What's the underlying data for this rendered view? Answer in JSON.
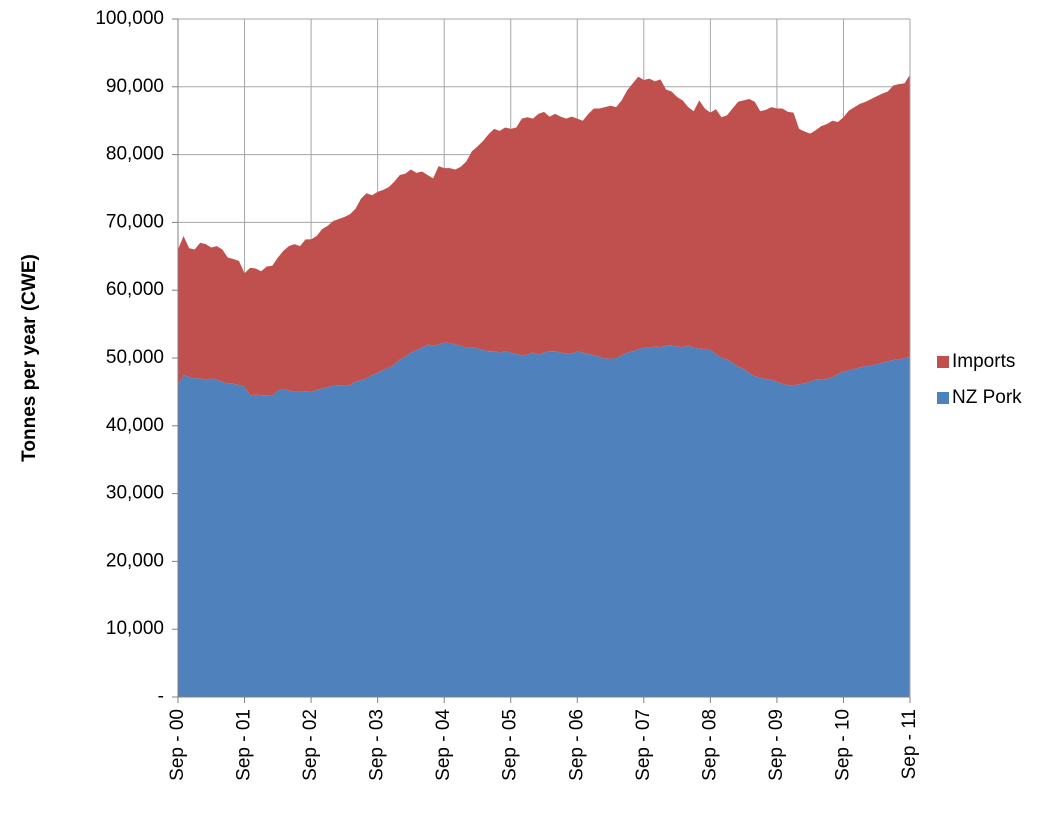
{
  "chart_data": {
    "type": "area",
    "stacked": true,
    "y_label": "Tonnes per year (CWE)",
    "categories": [
      "Sep - 00",
      null,
      null,
      null,
      null,
      null,
      null,
      null,
      null,
      null,
      null,
      null,
      "Sep - 01",
      null,
      null,
      null,
      null,
      null,
      null,
      null,
      null,
      null,
      null,
      null,
      "Sep - 02",
      null,
      null,
      null,
      null,
      null,
      null,
      null,
      null,
      null,
      null,
      null,
      "Sep - 03",
      null,
      null,
      null,
      null,
      null,
      null,
      null,
      null,
      null,
      null,
      null,
      "Sep - 04",
      null,
      null,
      null,
      null,
      null,
      null,
      null,
      null,
      null,
      null,
      null,
      "Sep - 05",
      null,
      null,
      null,
      null,
      null,
      null,
      null,
      null,
      null,
      null,
      null,
      "Sep - 06",
      null,
      null,
      null,
      null,
      null,
      null,
      null,
      null,
      null,
      null,
      null,
      "Sep - 07",
      null,
      null,
      null,
      null,
      null,
      null,
      null,
      null,
      null,
      null,
      null,
      "Sep - 08",
      null,
      null,
      null,
      null,
      null,
      null,
      null,
      null,
      null,
      null,
      null,
      "Sep - 09",
      null,
      null,
      null,
      null,
      null,
      null,
      null,
      null,
      null,
      null,
      null,
      "Sep - 10",
      null,
      null,
      null,
      null,
      null,
      null,
      null,
      null,
      null,
      null,
      null,
      "Sep - 11"
    ],
    "series": [
      {
        "name": "NZ Pork",
        "color": "#4f81bd",
        "values": [
          46000,
          47500,
          47200,
          47000,
          47000,
          46800,
          47000,
          46800,
          46500,
          46200,
          46200,
          46000,
          45800,
          44500,
          44600,
          44500,
          44500,
          44400,
          45200,
          45400,
          45200,
          45000,
          45000,
          45100,
          45000,
          45300,
          45500,
          45700,
          45900,
          46000,
          45900,
          46000,
          46500,
          46700,
          47000,
          47500,
          47800,
          48200,
          48600,
          49000,
          49800,
          50200,
          50800,
          51200,
          51500,
          52000,
          51800,
          52000,
          52300,
          52200,
          52000,
          51800,
          51500,
          51600,
          51400,
          51200,
          51000,
          51000,
          50800,
          51000,
          50800,
          50600,
          50400,
          50500,
          50800,
          50500,
          50800,
          51000,
          51000,
          50800,
          50700,
          50600,
          51000,
          50800,
          50600,
          50400,
          50200,
          49900,
          49900,
          50000,
          50400,
          50800,
          51000,
          51300,
          51500,
          51500,
          51700,
          51600,
          51800,
          51800,
          51700,
          51600,
          51800,
          51500,
          51400,
          51300,
          51200,
          50600,
          50000,
          49800,
          49300,
          48700,
          48400,
          47800,
          47300,
          47100,
          46900,
          46800,
          46500,
          46200,
          46000,
          46000,
          46100,
          46300,
          46500,
          46800,
          46800,
          46900,
          47200,
          47600,
          48000,
          48200,
          48400,
          48600,
          48800,
          48900,
          49100,
          49300,
          49500,
          49700,
          49800,
          50000,
          50200
        ]
      },
      {
        "name": "Imports",
        "color": "#c0504d",
        "values": [
          20000,
          20500,
          19000,
          19000,
          20000,
          20000,
          19300,
          19700,
          19500,
          18600,
          18400,
          18300,
          16700,
          18800,
          18600,
          18300,
          19000,
          19200,
          19600,
          20400,
          21300,
          21800,
          21500,
          22400,
          22500,
          22700,
          23500,
          23800,
          24300,
          24500,
          24900,
          25200,
          25500,
          26800,
          27300,
          26500,
          26700,
          26600,
          26600,
          27000,
          27200,
          27000,
          27000,
          26100,
          26000,
          25000,
          24700,
          26300,
          25700,
          25800,
          25800,
          26400,
          27500,
          28900,
          29800,
          30800,
          32000,
          32800,
          32700,
          33000,
          33000,
          33400,
          34900,
          35000,
          34500,
          35500,
          35500,
          34600,
          35000,
          34800,
          34600,
          35000,
          34300,
          34200,
          35400,
          36400,
          36600,
          37100,
          37300,
          37000,
          37600,
          38700,
          39500,
          40200,
          39500,
          39700,
          39100,
          39500,
          37800,
          37500,
          36800,
          36400,
          35200,
          34900,
          36600,
          35500,
          35000,
          36100,
          35500,
          36000,
          37500,
          39100,
          39600,
          40400,
          40500,
          39300,
          39700,
          40200,
          40300,
          40600,
          40300,
          40200,
          37700,
          37100,
          36600,
          36800,
          37400,
          37600,
          37800,
          37200,
          37500,
          38300,
          38600,
          38900,
          39000,
          39300,
          39500,
          39700,
          39800,
          40500,
          40600,
          40500,
          41600
        ]
      }
    ],
    "ylim": [
      0,
      100000
    ],
    "yticks": [
      {
        "value": 0,
        "label": "-"
      },
      {
        "value": 10000,
        "label": "10,000"
      },
      {
        "value": 20000,
        "label": "20,000"
      },
      {
        "value": 30000,
        "label": "30,000"
      },
      {
        "value": 40000,
        "label": "40,000"
      },
      {
        "value": 50000,
        "label": "50,000"
      },
      {
        "value": 60000,
        "label": "60,000"
      },
      {
        "value": 70000,
        "label": "70,000"
      },
      {
        "value": 80000,
        "label": "80,000"
      },
      {
        "value": 90000,
        "label": "90,000"
      },
      {
        "value": 100000,
        "label": "100,000"
      }
    ],
    "grid": true,
    "legend": "right"
  }
}
